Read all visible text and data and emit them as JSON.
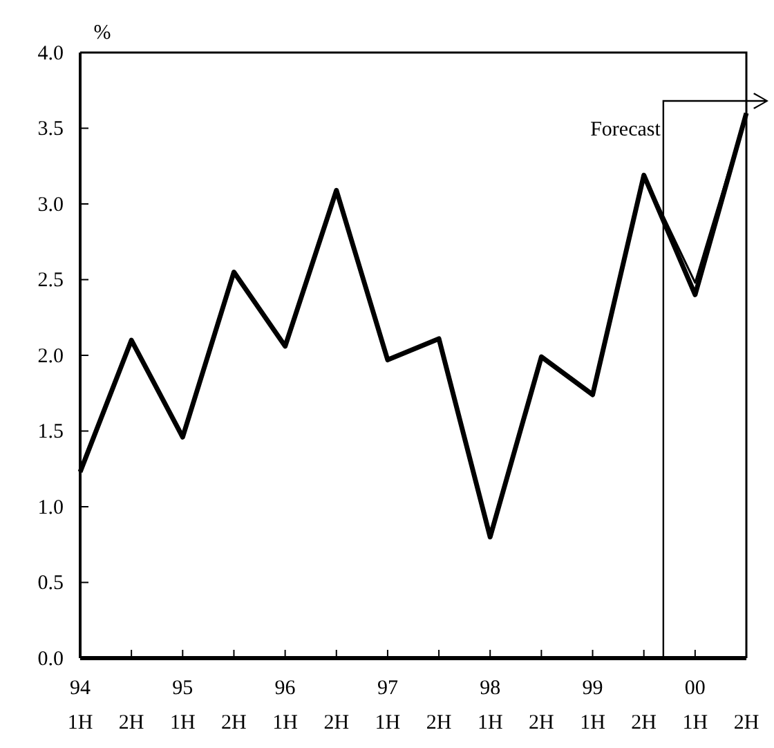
{
  "chart_data": {
    "type": "line",
    "ylabel": "%",
    "categories": [
      "94\n1H",
      "2H",
      "95\n1H",
      "2H",
      "96\n1H",
      "2H",
      "97\n1H",
      "2H",
      "98\n1H",
      "2H",
      "99\n1H",
      "2H",
      "00\n1H",
      "2H"
    ],
    "series": [
      {
        "color": "#000000",
        "values": [
          1.23,
          2.1,
          1.46,
          2.55,
          2.06,
          3.09,
          1.97,
          2.11,
          0.8,
          1.99,
          1.74,
          3.19,
          2.4,
          3.6
        ]
      },
      {
        "color": "#000000",
        "values": [
          null,
          null,
          null,
          null,
          null,
          null,
          null,
          null,
          null,
          null,
          null,
          3.19,
          2.48,
          3.6
        ]
      }
    ],
    "ylim": [
      0,
      4
    ],
    "yticks": [
      {
        "value": 0,
        "label": "0.0"
      },
      {
        "value": 0.5,
        "label": "0.5"
      },
      {
        "value": 1,
        "label": "1.0"
      },
      {
        "value": 1.5,
        "label": "1.5"
      },
      {
        "value": 2,
        "label": "2.0"
      },
      {
        "value": 2.5,
        "label": "2.5"
      },
      {
        "value": 3,
        "label": "3.0"
      },
      {
        "value": 3.5,
        "label": "3.5"
      },
      {
        "value": 4,
        "label": "4.0"
      }
    ],
    "annotations": [
      "Forecast"
    ],
    "grid": false,
    "marker": "none",
    "line_style": "solid"
  }
}
